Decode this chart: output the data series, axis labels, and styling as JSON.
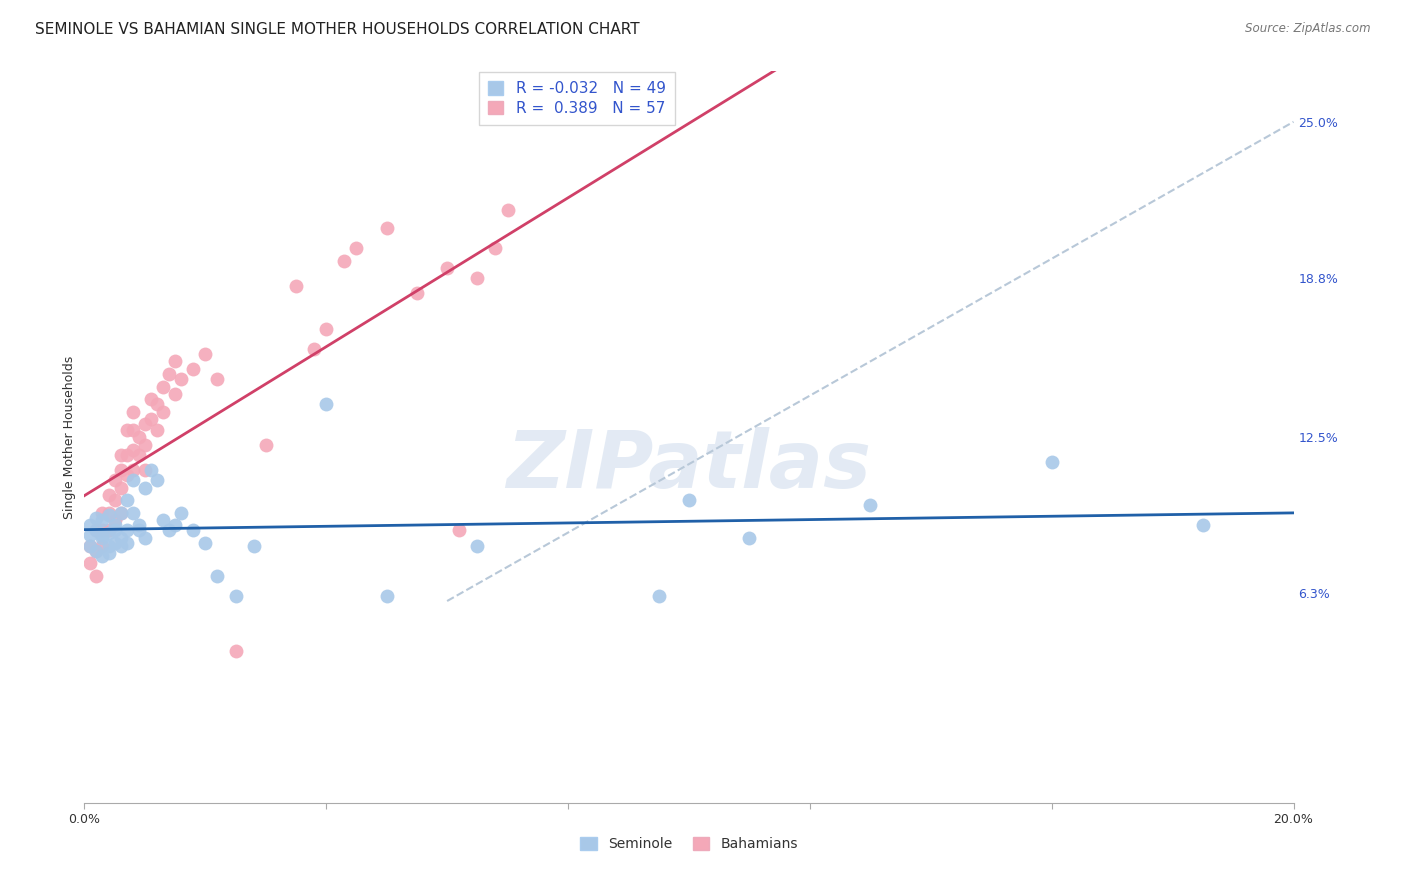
{
  "title": "SEMINOLE VS BAHAMIAN SINGLE MOTHER HOUSEHOLDS CORRELATION CHART",
  "source": "Source: ZipAtlas.com",
  "ylabel": "Single Mother Households",
  "xlim": [
    0.0,
    0.2
  ],
  "ylim": [
    -0.02,
    0.27
  ],
  "ytick_labels_right": [
    "25.0%",
    "18.8%",
    "12.5%",
    "6.3%"
  ],
  "ytick_vals_right": [
    0.25,
    0.188,
    0.125,
    0.063
  ],
  "R_seminole": -0.032,
  "N_seminole": 49,
  "R_bahamian": 0.389,
  "N_bahamian": 57,
  "color_seminole": "#A8C8E8",
  "color_bahamian": "#F4A8B8",
  "color_line_seminole": "#2060A8",
  "color_line_bahamian": "#D04068",
  "color_diagonal": "#B8C8D8",
  "legend_R_color": "#3355CC",
  "background_color": "#FFFFFF",
  "grid_color": "#DDDDDD",
  "seminole_x": [
    0.001,
    0.001,
    0.001,
    0.002,
    0.002,
    0.002,
    0.003,
    0.003,
    0.003,
    0.003,
    0.004,
    0.004,
    0.004,
    0.004,
    0.005,
    0.005,
    0.005,
    0.006,
    0.006,
    0.006,
    0.007,
    0.007,
    0.007,
    0.008,
    0.008,
    0.009,
    0.009,
    0.01,
    0.01,
    0.011,
    0.012,
    0.013,
    0.014,
    0.015,
    0.016,
    0.018,
    0.02,
    0.022,
    0.025,
    0.028,
    0.04,
    0.05,
    0.065,
    0.095,
    0.1,
    0.11,
    0.13,
    0.16,
    0.185
  ],
  "seminole_y": [
    0.082,
    0.09,
    0.086,
    0.088,
    0.08,
    0.093,
    0.085,
    0.092,
    0.078,
    0.086,
    0.094,
    0.087,
    0.082,
    0.079,
    0.09,
    0.083,
    0.088,
    0.095,
    0.085,
    0.082,
    0.1,
    0.088,
    0.083,
    0.108,
    0.095,
    0.09,
    0.088,
    0.105,
    0.085,
    0.112,
    0.108,
    0.092,
    0.088,
    0.09,
    0.095,
    0.088,
    0.083,
    0.07,
    0.062,
    0.082,
    0.138,
    0.062,
    0.082,
    0.062,
    0.1,
    0.085,
    0.098,
    0.115,
    0.09
  ],
  "bahamian_x": [
    0.001,
    0.001,
    0.002,
    0.002,
    0.002,
    0.003,
    0.003,
    0.003,
    0.004,
    0.004,
    0.004,
    0.005,
    0.005,
    0.005,
    0.006,
    0.006,
    0.006,
    0.006,
    0.007,
    0.007,
    0.007,
    0.008,
    0.008,
    0.008,
    0.008,
    0.009,
    0.009,
    0.01,
    0.01,
    0.01,
    0.011,
    0.011,
    0.012,
    0.012,
    0.013,
    0.013,
    0.014,
    0.015,
    0.015,
    0.016,
    0.018,
    0.02,
    0.022,
    0.025,
    0.03,
    0.035,
    0.038,
    0.04,
    0.043,
    0.045,
    0.05,
    0.055,
    0.06,
    0.062,
    0.065,
    0.068,
    0.07
  ],
  "bahamian_y": [
    0.082,
    0.075,
    0.088,
    0.08,
    0.07,
    0.095,
    0.088,
    0.082,
    0.102,
    0.095,
    0.088,
    0.108,
    0.1,
    0.092,
    0.118,
    0.112,
    0.105,
    0.095,
    0.128,
    0.118,
    0.11,
    0.12,
    0.112,
    0.128,
    0.135,
    0.125,
    0.118,
    0.13,
    0.122,
    0.112,
    0.14,
    0.132,
    0.138,
    0.128,
    0.145,
    0.135,
    0.15,
    0.155,
    0.142,
    0.148,
    0.152,
    0.158,
    0.148,
    0.04,
    0.122,
    0.185,
    0.16,
    0.168,
    0.195,
    0.2,
    0.208,
    0.182,
    0.192,
    0.088,
    0.188,
    0.2,
    0.215
  ],
  "watermark_text": "ZIPatlas",
  "title_fontsize": 11,
  "axis_label_fontsize": 9,
  "tick_fontsize": 9,
  "legend_fontsize": 11
}
